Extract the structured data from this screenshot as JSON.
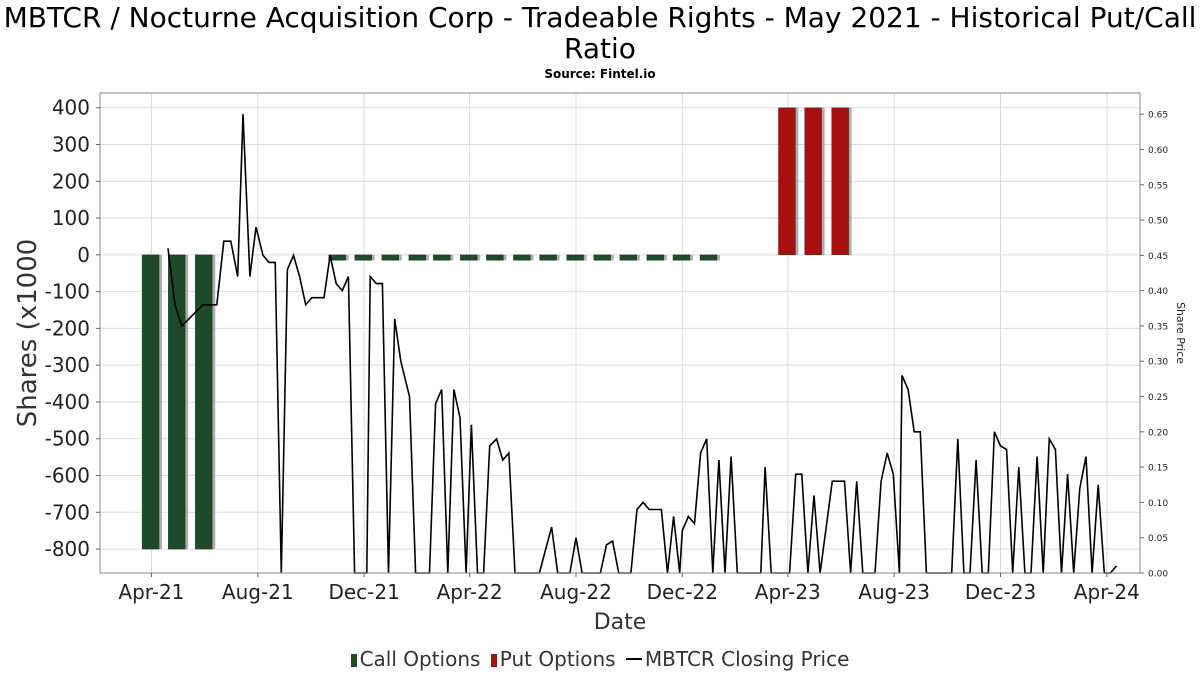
{
  "chart_data": {
    "type": "bar",
    "title": "MBTCR / Nocturne Acquisition Corp - Tradeable Rights - May 2021 - Historical Put/Call Ratio",
    "subtitle": "Source: Fintel.io",
    "xlabel": "Date",
    "ylabel": "Shares (x1000",
    "y2label": "Share Price",
    "x_ticks": [
      "Apr-21",
      "Aug-21",
      "Dec-21",
      "Apr-22",
      "Aug-22",
      "Dec-22",
      "Apr-23",
      "Aug-23",
      "Dec-23",
      "Apr-24"
    ],
    "y_ticks": [
      400,
      300,
      200,
      100,
      0,
      -100,
      -200,
      -300,
      -400,
      -500,
      -600,
      -700,
      -800
    ],
    "y2_ticks": [
      "0.65",
      "0.60",
      "0.55",
      "0.50",
      "0.45",
      "0.40",
      "0.35",
      "0.30",
      "0.25",
      "0.20",
      "0.15",
      "0.10",
      "0.05",
      "0.00"
    ],
    "ylim": [
      -865,
      440
    ],
    "y2lim": [
      0,
      0.68
    ],
    "grid": true,
    "legend_position": "bottom",
    "colors": {
      "call": "#1f4a2a",
      "put": "#a81010",
      "price": "#000000"
    },
    "series": [
      {
        "name": "Call Options",
        "type": "bar",
        "points": [
          {
            "date": "2021-03-31",
            "value": -800
          },
          {
            "date": "2021-04-30",
            "value": -800
          },
          {
            "date": "2021-05-31",
            "value": -800
          },
          {
            "date": "2021-10-31",
            "value": -15
          },
          {
            "date": "2021-11-30",
            "value": -15
          },
          {
            "date": "2021-12-31",
            "value": -15
          },
          {
            "date": "2022-01-31",
            "value": -15
          },
          {
            "date": "2022-02-28",
            "value": -15
          },
          {
            "date": "2022-03-31",
            "value": -15
          },
          {
            "date": "2022-04-30",
            "value": -15
          },
          {
            "date": "2022-05-31",
            "value": -15
          },
          {
            "date": "2022-06-30",
            "value": -15
          },
          {
            "date": "2022-07-31",
            "value": -15
          },
          {
            "date": "2022-08-31",
            "value": -15
          },
          {
            "date": "2022-09-30",
            "value": -15
          },
          {
            "date": "2022-10-31",
            "value": -15
          },
          {
            "date": "2022-11-30",
            "value": -15
          },
          {
            "date": "2022-12-31",
            "value": -15
          }
        ]
      },
      {
        "name": "Put Options",
        "type": "bar",
        "points": [
          {
            "date": "2023-03-31",
            "value": 400
          },
          {
            "date": "2023-04-30",
            "value": 400
          },
          {
            "date": "2023-05-31",
            "value": 400
          }
        ]
      },
      {
        "name": "MBTCR Closing Price",
        "type": "line",
        "axis": "right",
        "points": [
          {
            "date": "2021-04-20",
            "value": 0.46
          },
          {
            "date": "2021-04-28",
            "value": 0.38
          },
          {
            "date": "2021-05-06",
            "value": 0.35
          },
          {
            "date": "2021-05-14",
            "value": 0.36
          },
          {
            "date": "2021-05-22",
            "value": 0.37
          },
          {
            "date": "2021-05-30",
            "value": 0.38
          },
          {
            "date": "2021-06-07",
            "value": 0.38
          },
          {
            "date": "2021-06-15",
            "value": 0.38
          },
          {
            "date": "2021-06-23",
            "value": 0.47
          },
          {
            "date": "2021-07-01",
            "value": 0.47
          },
          {
            "date": "2021-07-09",
            "value": 0.42
          },
          {
            "date": "2021-07-15",
            "value": 0.65
          },
          {
            "date": "2021-07-23",
            "value": 0.42
          },
          {
            "date": "2021-07-30",
            "value": 0.49
          },
          {
            "date": "2021-08-07",
            "value": 0.45
          },
          {
            "date": "2021-08-14",
            "value": 0.44
          },
          {
            "date": "2021-08-21",
            "value": 0.44
          },
          {
            "date": "2021-08-28",
            "value": 0.0
          },
          {
            "date": "2021-09-04",
            "value": 0.43
          },
          {
            "date": "2021-09-11",
            "value": 0.45
          },
          {
            "date": "2021-09-18",
            "value": 0.42
          },
          {
            "date": "2021-09-25",
            "value": 0.38
          },
          {
            "date": "2021-10-02",
            "value": 0.39
          },
          {
            "date": "2021-10-09",
            "value": 0.39
          },
          {
            "date": "2021-10-16",
            "value": 0.39
          },
          {
            "date": "2021-10-23",
            "value": 0.45
          },
          {
            "date": "2021-10-30",
            "value": 0.41
          },
          {
            "date": "2021-11-06",
            "value": 0.4
          },
          {
            "date": "2021-11-13",
            "value": 0.42
          },
          {
            "date": "2021-11-20",
            "value": 0.0
          },
          {
            "date": "2021-12-04",
            "value": 0.0
          },
          {
            "date": "2021-12-08",
            "value": 0.42
          },
          {
            "date": "2021-12-15",
            "value": 0.41
          },
          {
            "date": "2021-12-22",
            "value": 0.41
          },
          {
            "date": "2021-12-29",
            "value": 0.0
          },
          {
            "date": "2022-01-05",
            "value": 0.36
          },
          {
            "date": "2022-01-12",
            "value": 0.3
          },
          {
            "date": "2022-01-22",
            "value": 0.25
          },
          {
            "date": "2022-01-29",
            "value": 0.0
          },
          {
            "date": "2022-02-14",
            "value": 0.0
          },
          {
            "date": "2022-02-21",
            "value": 0.24
          },
          {
            "date": "2022-02-28",
            "value": 0.26
          },
          {
            "date": "2022-03-07",
            "value": 0.0
          },
          {
            "date": "2022-03-14",
            "value": 0.26
          },
          {
            "date": "2022-03-21",
            "value": 0.22
          },
          {
            "date": "2022-03-28",
            "value": 0.0
          },
          {
            "date": "2022-04-03",
            "value": 0.21
          },
          {
            "date": "2022-04-10",
            "value": 0.0
          },
          {
            "date": "2022-04-17",
            "value": 0.0
          },
          {
            "date": "2022-04-24",
            "value": 0.18
          },
          {
            "date": "2022-05-02",
            "value": 0.19
          },
          {
            "date": "2022-05-09",
            "value": 0.16
          },
          {
            "date": "2022-05-16",
            "value": 0.17
          },
          {
            "date": "2022-05-23",
            "value": 0.0
          },
          {
            "date": "2022-06-20",
            "value": 0.0
          },
          {
            "date": "2022-07-04",
            "value": 0.065
          },
          {
            "date": "2022-07-11",
            "value": 0.0
          },
          {
            "date": "2022-07-25",
            "value": 0.0
          },
          {
            "date": "2022-08-01",
            "value": 0.05
          },
          {
            "date": "2022-08-08",
            "value": 0.0
          },
          {
            "date": "2022-08-15",
            "value": 0.0
          },
          {
            "date": "2022-08-29",
            "value": 0.0
          },
          {
            "date": "2022-09-05",
            "value": 0.04
          },
          {
            "date": "2022-09-12",
            "value": 0.045
          },
          {
            "date": "2022-09-19",
            "value": 0.0
          },
          {
            "date": "2022-10-03",
            "value": 0.0
          },
          {
            "date": "2022-10-10",
            "value": 0.09
          },
          {
            "date": "2022-10-17",
            "value": 0.1
          },
          {
            "date": "2022-10-24",
            "value": 0.09
          },
          {
            "date": "2022-10-31",
            "value": 0.09
          },
          {
            "date": "2022-11-07",
            "value": 0.09
          },
          {
            "date": "2022-11-14",
            "value": 0.0
          },
          {
            "date": "2022-11-21",
            "value": 0.08
          },
          {
            "date": "2022-11-28",
            "value": 0.0
          },
          {
            "date": "2022-12-01",
            "value": 0.06
          },
          {
            "date": "2022-12-08",
            "value": 0.08
          },
          {
            "date": "2022-12-15",
            "value": 0.07
          },
          {
            "date": "2022-12-22",
            "value": 0.17
          },
          {
            "date": "2022-12-29",
            "value": 0.19
          },
          {
            "date": "2023-01-05",
            "value": 0.0
          },
          {
            "date": "2023-01-12",
            "value": 0.16
          },
          {
            "date": "2023-01-19",
            "value": 0.0
          },
          {
            "date": "2023-01-26",
            "value": 0.165
          },
          {
            "date": "2023-02-02",
            "value": 0.0
          },
          {
            "date": "2023-03-01",
            "value": 0.0
          },
          {
            "date": "2023-03-06",
            "value": 0.15
          },
          {
            "date": "2023-03-13",
            "value": 0.0
          },
          {
            "date": "2023-04-03",
            "value": 0.0
          },
          {
            "date": "2023-04-10",
            "value": 0.14
          },
          {
            "date": "2023-04-17",
            "value": 0.14
          },
          {
            "date": "2023-04-24",
            "value": 0.0
          },
          {
            "date": "2023-05-01",
            "value": 0.11
          },
          {
            "date": "2023-05-08",
            "value": 0.0
          },
          {
            "date": "2023-05-22",
            "value": 0.13
          },
          {
            "date": "2023-06-05",
            "value": 0.13
          },
          {
            "date": "2023-06-12",
            "value": 0.0
          },
          {
            "date": "2023-06-19",
            "value": 0.13
          },
          {
            "date": "2023-06-26",
            "value": 0.0
          },
          {
            "date": "2023-07-10",
            "value": 0.0
          },
          {
            "date": "2023-07-17",
            "value": 0.13
          },
          {
            "date": "2023-07-24",
            "value": 0.17
          },
          {
            "date": "2023-07-31",
            "value": 0.14
          },
          {
            "date": "2023-08-07",
            "value": 0.0
          },
          {
            "date": "2023-08-10",
            "value": 0.28
          },
          {
            "date": "2023-08-17",
            "value": 0.26
          },
          {
            "date": "2023-08-24",
            "value": 0.2
          },
          {
            "date": "2023-08-31",
            "value": 0.2
          },
          {
            "date": "2023-09-07",
            "value": 0.0
          },
          {
            "date": "2023-10-06",
            "value": 0.0
          },
          {
            "date": "2023-10-13",
            "value": 0.19
          },
          {
            "date": "2023-10-20",
            "value": 0.0
          },
          {
            "date": "2023-10-27",
            "value": 0.0
          },
          {
            "date": "2023-11-03",
            "value": 0.16
          },
          {
            "date": "2023-11-10",
            "value": 0.0
          },
          {
            "date": "2023-11-17",
            "value": 0.0
          },
          {
            "date": "2023-11-24",
            "value": 0.2
          },
          {
            "date": "2023-12-01",
            "value": 0.18
          },
          {
            "date": "2023-12-08",
            "value": 0.175
          },
          {
            "date": "2023-12-15",
            "value": 0.0
          },
          {
            "date": "2023-12-22",
            "value": 0.15
          },
          {
            "date": "2023-12-29",
            "value": 0.0
          },
          {
            "date": "2024-01-05",
            "value": 0.0
          },
          {
            "date": "2024-01-12",
            "value": 0.165
          },
          {
            "date": "2024-01-19",
            "value": 0.0
          },
          {
            "date": "2024-01-26",
            "value": 0.19
          },
          {
            "date": "2024-02-02",
            "value": 0.175
          },
          {
            "date": "2024-02-09",
            "value": 0.0
          },
          {
            "date": "2024-02-16",
            "value": 0.14
          },
          {
            "date": "2024-02-23",
            "value": 0.0
          },
          {
            "date": "2024-03-01",
            "value": 0.12
          },
          {
            "date": "2024-03-08",
            "value": 0.165
          },
          {
            "date": "2024-03-15",
            "value": 0.0
          },
          {
            "date": "2024-03-22",
            "value": 0.125
          },
          {
            "date": "2024-03-29",
            "value": 0.0
          },
          {
            "date": "2024-04-05",
            "value": 0.0
          },
          {
            "date": "2024-04-12",
            "value": 0.01
          }
        ]
      }
    ]
  }
}
